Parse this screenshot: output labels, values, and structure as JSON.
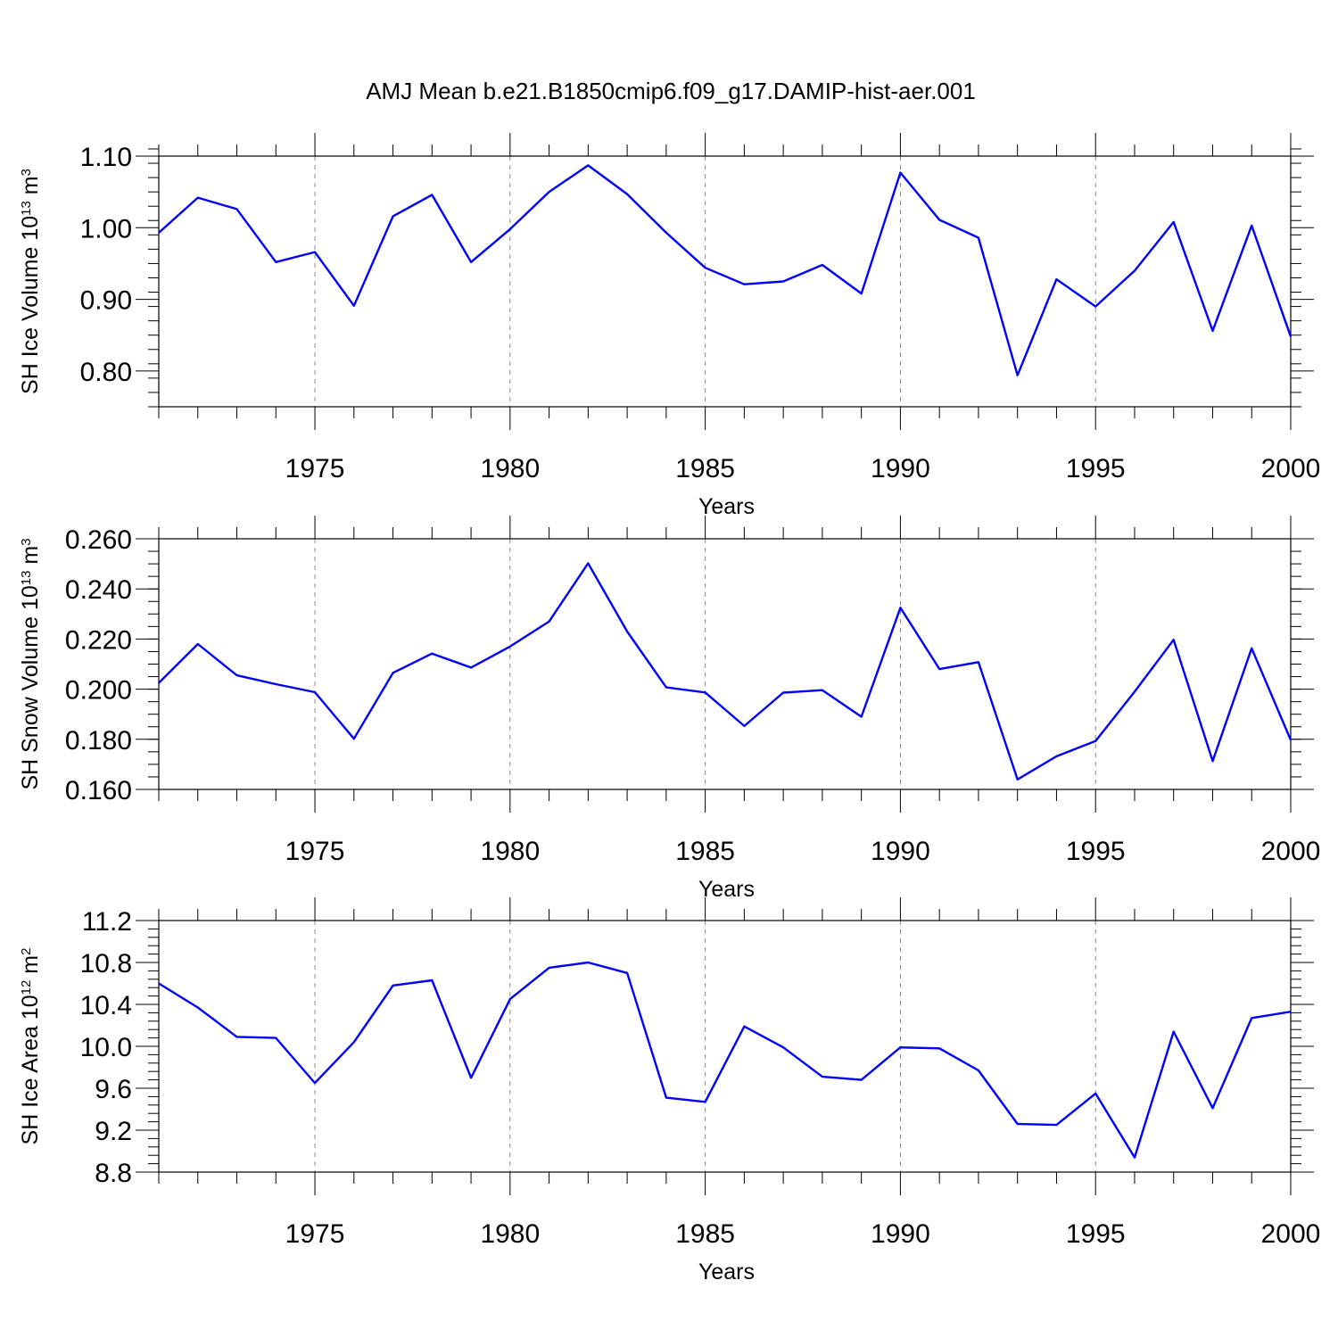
{
  "figure": {
    "title": "AMJ Mean b.e21.B1850cmip6.f09_g17.DAMIP-hist-aer.001",
    "line_color": "#0000ff"
  },
  "chart_data": [
    {
      "type": "line",
      "title": "",
      "xlabel": "Years",
      "ylabel": {
        "prefix": "SH Ice Volume 10",
        "sup1": "13",
        "mid": " m",
        "sup2": "3"
      },
      "xlim": [
        1971,
        2000
      ],
      "ylim": [
        0.75,
        1.1
      ],
      "x_ticks": [
        1975,
        1980,
        1985,
        1990,
        1995,
        2000
      ],
      "x_tick_labels": [
        "1975",
        "1980",
        "1985",
        "1990",
        "1995",
        "2000"
      ],
      "y_ticks": [
        0.8,
        0.9,
        1.0,
        1.1
      ],
      "y_tick_labels": [
        "0.80",
        "0.90",
        "1.00",
        "1.10"
      ],
      "y_minor_step": 0.02,
      "grid": "vertical dashed at major x ticks",
      "series": [
        {
          "x": [
            1971,
            1972,
            1973,
            1974,
            1975,
            1976,
            1977,
            1978,
            1979,
            1980,
            1981,
            1982,
            1983,
            1984,
            1985,
            1986,
            1987,
            1988,
            1989,
            1990,
            1991,
            1992,
            1993,
            1994,
            1995,
            1996,
            1997,
            1998,
            1999,
            2000
          ],
          "y": [
            0.993,
            1.042,
            1.026,
            0.952,
            0.966,
            0.891,
            1.016,
            1.046,
            0.952,
            0.998,
            1.05,
            1.087,
            1.047,
            0.993,
            0.944,
            0.921,
            0.925,
            0.948,
            0.908,
            1.077,
            1.011,
            0.986,
            0.794,
            0.928,
            0.89,
            0.94,
            1.008,
            0.856,
            1.003,
            0.848
          ]
        }
      ]
    },
    {
      "type": "line",
      "title": "",
      "xlabel": "Years",
      "ylabel": {
        "prefix": "SH Snow Volume 10",
        "sup1": "13",
        "mid": " m",
        "sup2": "3"
      },
      "xlim": [
        1971,
        2000
      ],
      "ylim": [
        0.16,
        0.26
      ],
      "x_ticks": [
        1975,
        1980,
        1985,
        1990,
        1995,
        2000
      ],
      "x_tick_labels": [
        "1975",
        "1980",
        "1985",
        "1990",
        "1995",
        "2000"
      ],
      "y_ticks": [
        0.16,
        0.18,
        0.2,
        0.22,
        0.24,
        0.26
      ],
      "y_tick_labels": [
        "0.160",
        "0.180",
        "0.200",
        "0.220",
        "0.240",
        "0.260"
      ],
      "y_minor_step": 0.005,
      "grid": "vertical dashed at major x ticks",
      "series": [
        {
          "x": [
            1971,
            1972,
            1973,
            1974,
            1975,
            1976,
            1977,
            1978,
            1979,
            1980,
            1981,
            1982,
            1983,
            1984,
            1985,
            1986,
            1987,
            1988,
            1989,
            1990,
            1991,
            1992,
            1993,
            1994,
            1995,
            1996,
            1997,
            1998,
            1999,
            2000
          ],
          "y": [
            0.2025,
            0.218,
            0.2055,
            0.202,
            0.1988,
            0.1802,
            0.2065,
            0.2142,
            0.2086,
            0.217,
            0.227,
            0.2502,
            0.223,
            0.2007,
            0.1987,
            0.1853,
            0.1986,
            0.1996,
            0.189,
            0.2325,
            0.208,
            0.2108,
            0.164,
            0.1732,
            0.1793,
            0.199,
            0.2197,
            0.1713,
            0.2163,
            0.1797
          ]
        }
      ]
    },
    {
      "type": "line",
      "title": "",
      "xlabel": "Years",
      "ylabel": {
        "prefix": "SH Ice Area 10",
        "sup1": "12",
        "mid": " m",
        "sup2": "2"
      },
      "xlim": [
        1971,
        2000
      ],
      "ylim": [
        8.8,
        11.2
      ],
      "x_ticks": [
        1975,
        1980,
        1985,
        1990,
        1995,
        2000
      ],
      "x_tick_labels": [
        "1975",
        "1980",
        "1985",
        "1990",
        "1995",
        "2000"
      ],
      "y_ticks": [
        8.8,
        9.2,
        9.6,
        10.0,
        10.4,
        10.8,
        11.2
      ],
      "y_tick_labels": [
        "8.8",
        "9.2",
        "9.6",
        "10.0",
        "10.4",
        "10.8",
        "11.2"
      ],
      "y_minor_step": 0.08,
      "grid": "vertical dashed at major x ticks",
      "series": [
        {
          "x": [
            1971,
            1972,
            1973,
            1974,
            1975,
            1976,
            1977,
            1978,
            1979,
            1980,
            1981,
            1982,
            1983,
            1984,
            1985,
            1986,
            1987,
            1988,
            1989,
            1990,
            1991,
            1992,
            1993,
            1994,
            1995,
            1996,
            1997,
            1998,
            1999,
            2000
          ],
          "y": [
            10.6,
            10.37,
            10.09,
            10.08,
            9.65,
            10.04,
            10.58,
            10.63,
            9.7,
            10.45,
            10.75,
            10.8,
            10.7,
            9.51,
            9.47,
            10.19,
            9.99,
            9.71,
            9.68,
            9.99,
            9.98,
            9.77,
            9.26,
            9.25,
            9.55,
            8.94,
            10.14,
            9.41,
            10.27,
            10.33
          ]
        }
      ]
    }
  ]
}
